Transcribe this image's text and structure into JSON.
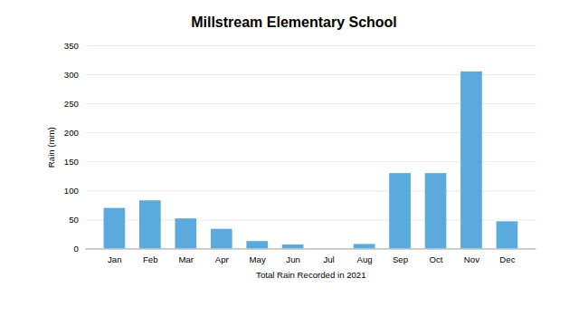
{
  "chart_data": {
    "type": "bar",
    "title": "Millstream Elementary School",
    "xlabel": "Total Rain Recorded in 2021",
    "ylabel": "Rain (mm)",
    "categories": [
      "Jan",
      "Feb",
      "Mar",
      "Apr",
      "May",
      "Jun",
      "Jul",
      "Aug",
      "Sep",
      "Oct",
      "Nov",
      "Dec"
    ],
    "values": [
      70,
      83,
      52,
      34,
      13,
      7,
      0,
      8,
      130,
      130,
      305,
      47
    ],
    "color": "#5BAADE",
    "ylim": [
      0,
      350
    ],
    "yticks": [
      0,
      50,
      100,
      150,
      200,
      250,
      300,
      350
    ],
    "grid": true
  }
}
